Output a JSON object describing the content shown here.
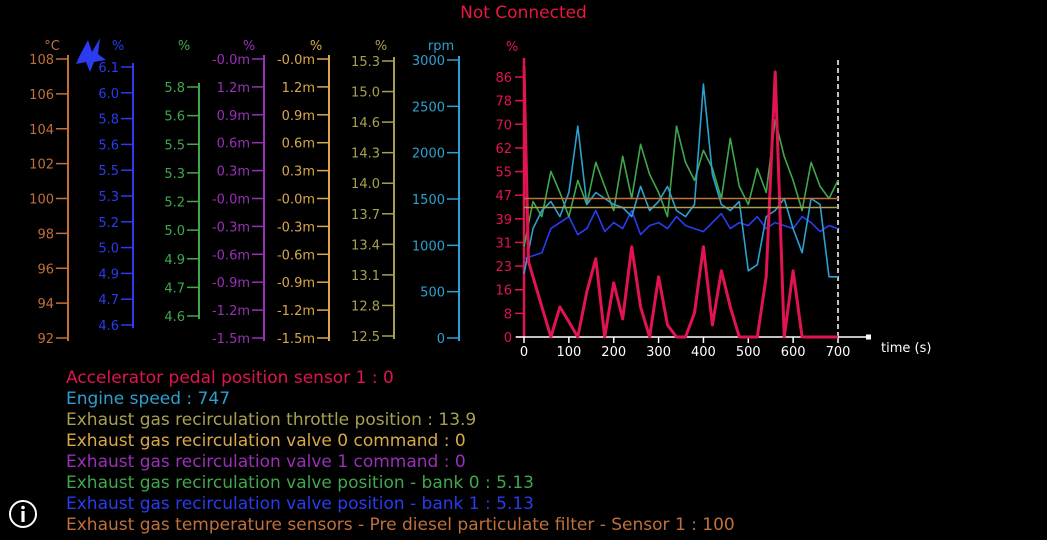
{
  "status": "Not Connected",
  "colors": {
    "temp": "#c0703a",
    "blue": "#2a3bf0",
    "green": "#3fa84c",
    "purple": "#9a2fb8",
    "gold": "#d9a84a",
    "olive": "#a8a050",
    "cyan": "#2ca0d0",
    "red": "#e01450"
  },
  "gauges": [
    {
      "unit": "°C",
      "color": "#c0703a",
      "ticks": [
        "108",
        "106",
        "104",
        "102",
        "100",
        "98",
        "96",
        "94",
        "92"
      ]
    },
    {
      "unit": "%",
      "color": "#2a3bf0",
      "ticks": [
        "6.1",
        "6.0",
        "5.8",
        "5.6",
        "5.5",
        "5.3",
        "5.2",
        "5.0",
        "4.9",
        "4.7",
        "4.6"
      ]
    },
    {
      "unit": "%",
      "color": "#3fa84c",
      "ticks": [
        "5.8",
        "5.6",
        "5.5",
        "5.3",
        "5.2",
        "5.0",
        "4.9",
        "4.7",
        "4.6"
      ]
    },
    {
      "unit": "%",
      "color": "#9a2fb8",
      "ticks": [
        "-0.0m",
        "1.2m",
        "0.9m",
        "0.6m",
        "0.3m",
        "-0.0m",
        "-0.3m",
        "-0.6m",
        "-0.9m",
        "-1.2m",
        "-1.5m"
      ]
    },
    {
      "unit": "%",
      "color": "#d9a84a",
      "ticks": [
        "-0.0m",
        "1.2m",
        "0.9m",
        "0.6m",
        "0.3m",
        "-0.0m",
        "-0.3m",
        "-0.6m",
        "-0.9m",
        "-1.2m",
        "-1.5m"
      ]
    },
    {
      "unit": "%",
      "color": "#a8a050",
      "ticks": [
        "15.3",
        "15.0",
        "14.6",
        "14.3",
        "14.0",
        "13.7",
        "13.4",
        "13.1",
        "12.8",
        "12.5"
      ]
    },
    {
      "unit": "rpm",
      "color": "#2ca0d0",
      "ticks": [
        "3000",
        "2500",
        "2000",
        "1500",
        "1000",
        "500",
        "0"
      ]
    }
  ],
  "chart_data": {
    "type": "line",
    "xlabel": "time (s)",
    "ylabel": "%",
    "xlim": [
      0,
      700
    ],
    "ylim": [
      0,
      90
    ],
    "xticks": [
      "0",
      "100",
      "200",
      "300",
      "400",
      "500",
      "600",
      "700"
    ],
    "yticks": [
      "86",
      "78",
      "70",
      "62",
      "55",
      "47",
      "39",
      "31",
      "23",
      "16",
      "8",
      "0"
    ],
    "cursor_x": 700,
    "series": [
      {
        "name": "Exhaust gas recirculation valve position - bank 1",
        "color": "#2a3bf0",
        "x": [
          0,
          20,
          40,
          60,
          80,
          100,
          120,
          140,
          160,
          180,
          200,
          220,
          240,
          260,
          280,
          300,
          320,
          340,
          360,
          380,
          400,
          420,
          440,
          460,
          480,
          500,
          520,
          540,
          560,
          580,
          600,
          620,
          640,
          660,
          680,
          700
        ],
        "y": [
          26,
          27,
          28,
          36,
          38,
          40,
          34,
          36,
          42,
          35,
          38,
          36,
          42,
          34,
          37,
          38,
          36,
          40,
          37,
          36,
          35,
          38,
          41,
          36,
          38,
          37,
          40,
          36,
          38,
          37,
          36,
          40,
          38,
          35,
          37,
          36
        ]
      },
      {
        "name": "Exhaust gas recirculation valve position - bank 0",
        "color": "#3fa84c",
        "x": [
          0,
          20,
          40,
          60,
          80,
          100,
          120,
          140,
          160,
          180,
          200,
          220,
          240,
          260,
          280,
          300,
          320,
          340,
          360,
          380,
          400,
          420,
          440,
          460,
          480,
          500,
          520,
          540,
          560,
          580,
          600,
          620,
          640,
          660,
          680,
          700
        ],
        "y": [
          30,
          45,
          40,
          55,
          48,
          40,
          52,
          44,
          58,
          50,
          42,
          60,
          46,
          64,
          54,
          48,
          40,
          70,
          58,
          52,
          62,
          56,
          46,
          66,
          50,
          44,
          56,
          48,
          72,
          60,
          52,
          42,
          58,
          50,
          46,
          52
        ]
      },
      {
        "name": "Engine speed",
        "color": "#2ca0d0",
        "x": [
          0,
          20,
          40,
          60,
          80,
          100,
          120,
          140,
          160,
          180,
          200,
          220,
          240,
          260,
          280,
          300,
          320,
          340,
          360,
          380,
          400,
          420,
          440,
          460,
          480,
          500,
          520,
          540,
          560,
          580,
          600,
          620,
          640,
          660,
          680,
          700
        ],
        "y": [
          21,
          36,
          42,
          45,
          40,
          48,
          70,
          44,
          48,
          46,
          44,
          43,
          40,
          50,
          42,
          45,
          50,
          42,
          40,
          44,
          84,
          54,
          44,
          42,
          45,
          22,
          24,
          40,
          42,
          46,
          36,
          28,
          46,
          44,
          20,
          20
        ]
      },
      {
        "name": "Accelerator pedal position sensor 1",
        "color": "#e01450",
        "x": [
          0,
          10,
          20,
          40,
          60,
          80,
          100,
          120,
          140,
          160,
          180,
          200,
          220,
          240,
          260,
          280,
          300,
          320,
          340,
          360,
          380,
          400,
          420,
          440,
          460,
          480,
          500,
          520,
          540,
          560,
          580,
          600,
          620,
          640,
          660,
          680,
          700
        ],
        "y": [
          90,
          25,
          20,
          10,
          0,
          10,
          5,
          0,
          15,
          26,
          0,
          18,
          6,
          30,
          10,
          0,
          20,
          4,
          0,
          0,
          8,
          30,
          4,
          22,
          10,
          0,
          0,
          0,
          20,
          88,
          0,
          22,
          0,
          0,
          0,
          0,
          0
        ]
      },
      {
        "name": "Exhaust gas temperature sensors - Pre diesel particulate filter - Sensor 1",
        "color": "#c0703a",
        "x": [
          0,
          700
        ],
        "y": [
          46,
          46
        ]
      },
      {
        "name": "Exhaust gas recirculation throttle position",
        "color": "#a8a050",
        "x": [
          0,
          700
        ],
        "y": [
          43,
          43
        ]
      }
    ]
  },
  "legend": [
    {
      "text": "Accelerator pedal position sensor 1 : 0",
      "color": "#e01450"
    },
    {
      "text": "Engine speed : 747",
      "color": "#2ca0d0"
    },
    {
      "text": "Exhaust gas recirculation throttle position : 13.9",
      "color": "#a8a050"
    },
    {
      "text": "Exhaust gas recirculation valve 0 command : 0",
      "color": "#d9a84a"
    },
    {
      "text": "Exhaust gas recirculation valve 1 command : 0",
      "color": "#9a2fb8"
    },
    {
      "text": "Exhaust gas recirculation valve position - bank 0 : 5.13",
      "color": "#3fa84c"
    },
    {
      "text": "Exhaust gas recirculation valve position - bank 1 : 5.13",
      "color": "#2a3bf0"
    },
    {
      "text": "Exhaust gas temperature sensors  -  Pre diesel particulate filter  -  Sensor 1 : 100",
      "color": "#c0703a"
    }
  ]
}
